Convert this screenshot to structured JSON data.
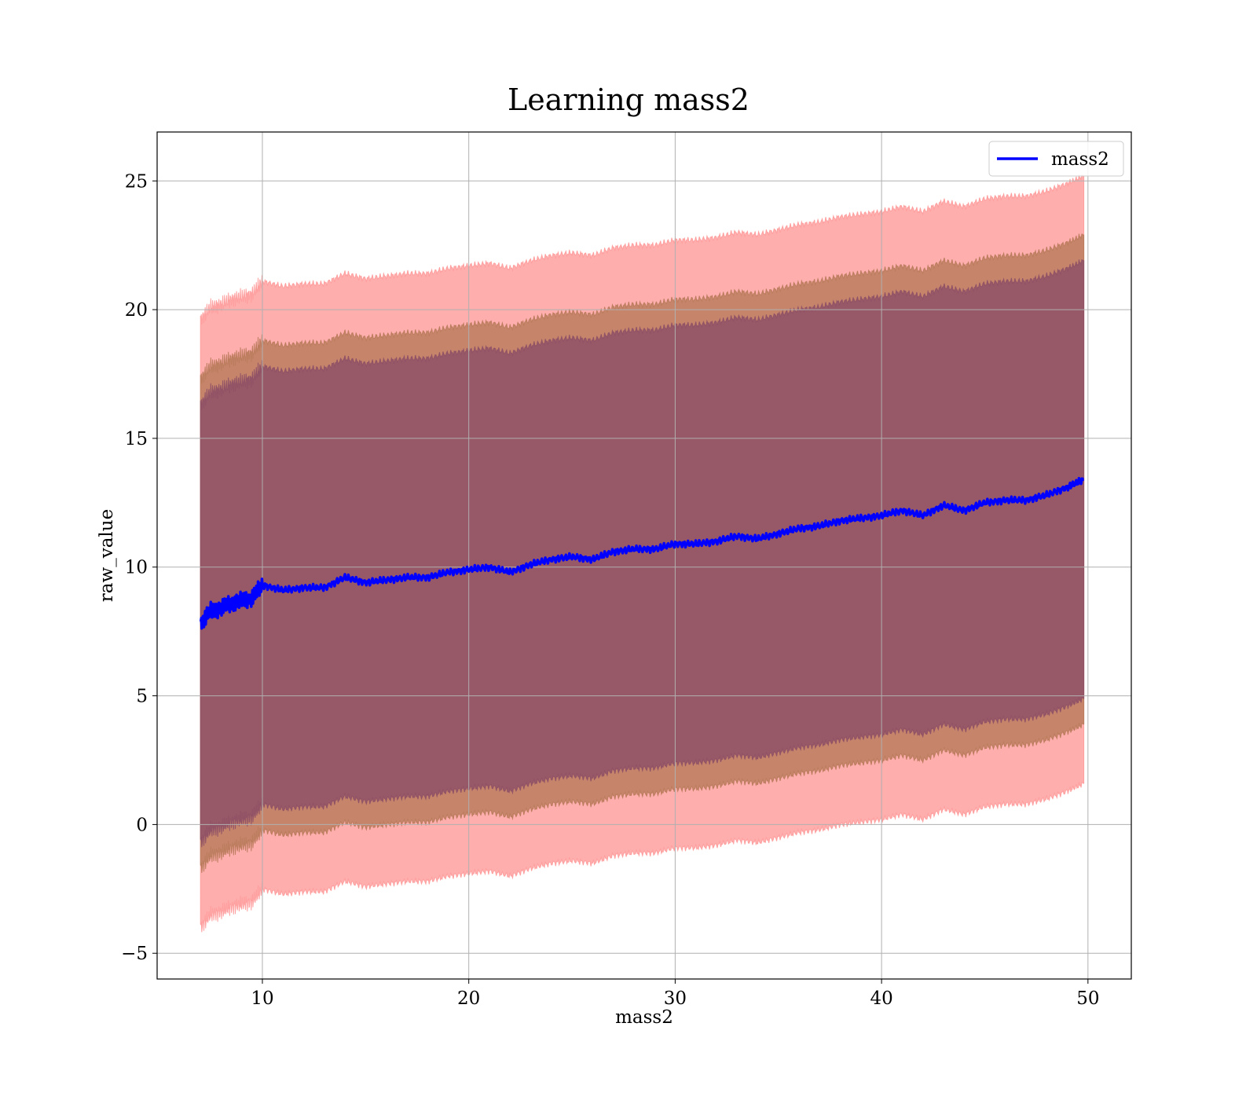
{
  "chart_data": {
    "type": "area",
    "title": "Learning mass2",
    "xlabel": "mass2",
    "ylabel": "raw_value",
    "xlim": [
      4.9,
      52.1
    ],
    "ylim": [
      -6.0,
      26.9
    ],
    "xticks": [
      10,
      20,
      30,
      40,
      50
    ],
    "xtick_labels": [
      "10",
      "20",
      "30",
      "40",
      "50"
    ],
    "yticks": [
      -5,
      0,
      5,
      10,
      15,
      20,
      25
    ],
    "ytick_labels": [
      "−5",
      "0",
      "5",
      "10",
      "15",
      "20",
      "25"
    ],
    "grid": true,
    "legend": {
      "position": "top-right",
      "entries": [
        "mass2"
      ]
    },
    "colors": {
      "line": "#0000ff",
      "band_outer": "#ff9a9a",
      "band_middle": "#b87a5a",
      "band_inner": "#8e5066"
    },
    "band_offsets": {
      "outer": 11.8,
      "middle": 9.5,
      "inner": 8.5
    },
    "series": [
      {
        "name": "mass2",
        "x": [
          7.0,
          7.5,
          8.0,
          8.5,
          9.0,
          9.5,
          10.0,
          11.0,
          12.0,
          13.0,
          14.0,
          15.0,
          16.0,
          17.0,
          18.0,
          19.0,
          20.0,
          21.0,
          22.0,
          23.0,
          24.0,
          25.0,
          26.0,
          27.0,
          28.0,
          29.0,
          30.0,
          31.0,
          32.0,
          33.0,
          34.0,
          35.0,
          36.0,
          37.0,
          38.0,
          39.0,
          40.0,
          41.0,
          42.0,
          43.0,
          44.0,
          45.0,
          46.0,
          47.0,
          48.0,
          49.0,
          49.8
        ],
        "values": [
          7.8,
          8.3,
          8.4,
          8.6,
          8.7,
          8.8,
          9.3,
          9.1,
          9.2,
          9.2,
          9.6,
          9.4,
          9.5,
          9.6,
          9.6,
          9.8,
          9.9,
          10.0,
          9.8,
          10.1,
          10.3,
          10.4,
          10.3,
          10.6,
          10.7,
          10.7,
          10.9,
          10.9,
          11.0,
          11.2,
          11.1,
          11.3,
          11.5,
          11.6,
          11.8,
          11.9,
          12.0,
          12.2,
          12.0,
          12.4,
          12.2,
          12.5,
          12.6,
          12.6,
          12.8,
          13.1,
          13.4
        ]
      }
    ]
  }
}
